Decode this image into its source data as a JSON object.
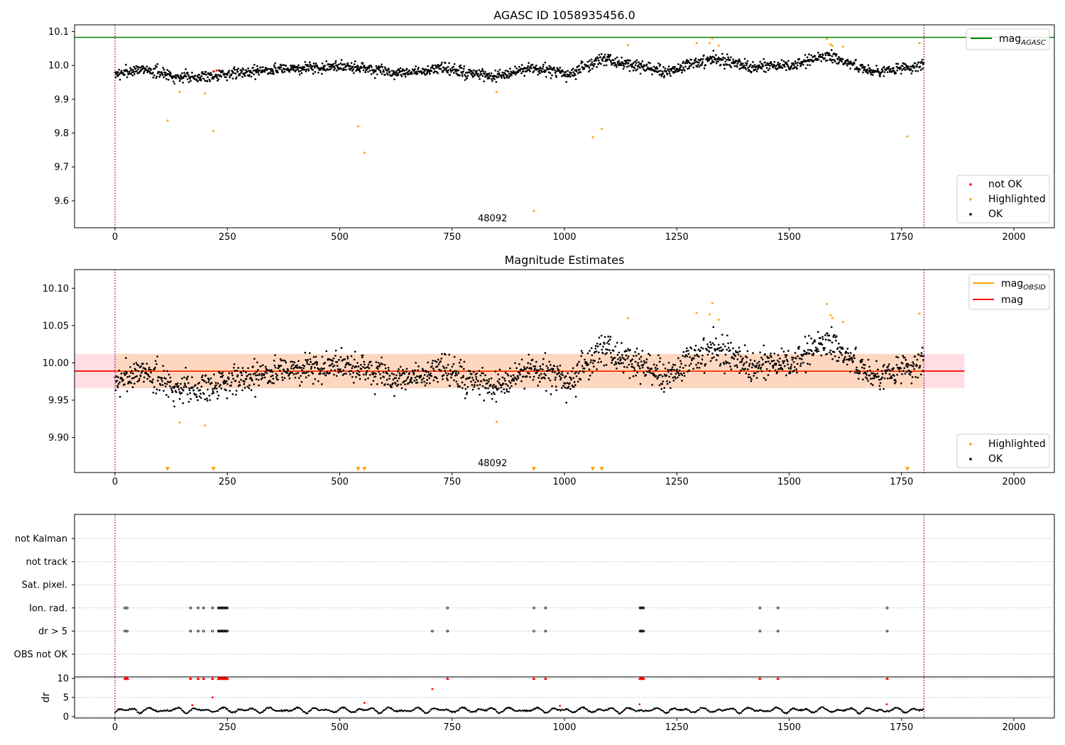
{
  "chart_data": [
    {
      "type": "scatter",
      "title": "AGASC ID 1058935456.0",
      "xlim": [
        -90,
        2090
      ],
      "ylim": [
        9.52,
        10.12
      ],
      "x_ticks": [
        0,
        250,
        500,
        750,
        1000,
        1250,
        1500,
        1750,
        2000
      ],
      "x_tick_labels": [
        "0",
        "250",
        "500",
        "750",
        "1000",
        "1250",
        "1500",
        "1750",
        "2000"
      ],
      "y_ticks": [
        9.6,
        9.7,
        9.8,
        9.9,
        10.0,
        10.1
      ],
      "y_tick_labels": [
        "9.6",
        "9.7",
        "9.8",
        "9.9",
        "10.0",
        "10.1"
      ],
      "obsid_label": "48092",
      "obsid_label_x": 900,
      "vlines": [
        0,
        1800
      ],
      "hline": {
        "name": "mag_AGASC",
        "y": 10.083,
        "color": "#008000"
      },
      "legend_lines": [
        {
          "label": "mag",
          "sub": "AGASC",
          "color": "#008000"
        }
      ],
      "legend_markers": [
        {
          "label": "not OK",
          "color": "#ff0000"
        },
        {
          "label": "Highlighted",
          "color": "#ffa500"
        },
        {
          "label": "OK",
          "color": "#000000"
        }
      ],
      "ok_series": {
        "name": "OK",
        "color": "#000000",
        "n": 1800,
        "noise": 0.015,
        "trend_x": [
          0,
          60,
          150,
          220,
          320,
          420,
          530,
          620,
          730,
          840,
          930,
          1010,
          1080,
          1150,
          1230,
          1330,
          1420,
          1500,
          1590,
          1680,
          1800
        ],
        "trend_y": [
          9.972,
          9.99,
          9.965,
          9.97,
          9.985,
          9.992,
          9.998,
          9.975,
          9.99,
          9.965,
          9.992,
          9.972,
          10.02,
          10.0,
          9.98,
          10.022,
          9.995,
          10.0,
          10.03,
          9.98,
          10.0
        ]
      },
      "highlighted": [
        [
          117,
          9.837
        ],
        [
          144,
          9.922
        ],
        [
          200,
          9.917
        ],
        [
          219,
          9.806
        ],
        [
          541,
          9.82
        ],
        [
          555,
          9.742
        ],
        [
          849,
          9.922
        ],
        [
          932,
          9.57
        ],
        [
          1063,
          9.788
        ],
        [
          1083,
          9.812
        ],
        [
          1141,
          10.06
        ],
        [
          1294,
          10.066
        ],
        [
          1323,
          10.066
        ],
        [
          1329,
          10.08
        ],
        [
          1343,
          10.058
        ],
        [
          1584,
          10.078
        ],
        [
          1592,
          10.062
        ],
        [
          1596,
          10.058
        ],
        [
          1620,
          10.056
        ],
        [
          1763,
          9.79
        ],
        [
          1790,
          10.066
        ]
      ],
      "not_ok": [
        [
          219,
          9.982
        ],
        [
          226,
          9.985
        ]
      ]
    },
    {
      "type": "scatter",
      "title": "Magnitude Estimates",
      "xlim": [
        -90,
        2090
      ],
      "ylim": [
        9.853,
        10.125
      ],
      "x_ticks": [
        0,
        250,
        500,
        750,
        1000,
        1250,
        1500,
        1750,
        2000
      ],
      "x_tick_labels": [
        "0",
        "250",
        "500",
        "750",
        "1000",
        "1250",
        "1500",
        "1750",
        "2000"
      ],
      "y_ticks": [
        9.9,
        9.95,
        10.0,
        10.05,
        10.1
      ],
      "y_tick_labels": [
        "9.90",
        "9.95",
        "10.00",
        "10.05",
        "10.10"
      ],
      "obsid_label": "48092",
      "obsid_label_x": 900,
      "vlines": [
        0,
        1800
      ],
      "mag_line": {
        "name": "mag",
        "y": 9.989,
        "color": "#ff0000"
      },
      "mag_band": {
        "x": [
          -90,
          1890
        ],
        "y": [
          9.966,
          10.012
        ],
        "color": "#ffdde3"
      },
      "obsid_band": {
        "x": [
          0,
          1800
        ],
        "y": [
          9.966,
          10.012
        ],
        "color": "#ffd7c0"
      },
      "legend_lines": [
        {
          "label": "mag",
          "sub": "OBSID",
          "color": "#ffa500"
        },
        {
          "label": "mag",
          "sub": "",
          "color": "#ff0000"
        }
      ],
      "legend_markers": [
        {
          "label": "Highlighted",
          "color": "#ffa500"
        },
        {
          "label": "OK",
          "color": "#000000"
        }
      ],
      "ok_series": {
        "name": "OK",
        "color": "#000000",
        "n": 1800,
        "noise": 0.018,
        "trend_x": [
          0,
          60,
          150,
          220,
          320,
          420,
          530,
          620,
          730,
          840,
          930,
          1010,
          1080,
          1150,
          1230,
          1330,
          1420,
          1500,
          1590,
          1680,
          1800
        ],
        "trend_y": [
          9.972,
          9.99,
          9.965,
          9.97,
          9.985,
          9.992,
          9.998,
          9.975,
          9.99,
          9.965,
          9.992,
          9.972,
          10.02,
          10.0,
          9.98,
          10.022,
          9.995,
          10.0,
          10.03,
          9.98,
          10.0
        ]
      },
      "highlighted": [
        [
          144,
          9.92
        ],
        [
          200,
          9.916
        ],
        [
          849,
          9.921
        ],
        [
          1141,
          10.06
        ],
        [
          1294,
          10.067
        ],
        [
          1323,
          10.065
        ],
        [
          1329,
          10.08
        ],
        [
          1343,
          10.058
        ],
        [
          1584,
          10.079
        ],
        [
          1592,
          10.064
        ],
        [
          1596,
          10.06
        ],
        [
          1620,
          10.055
        ],
        [
          1790,
          10.066
        ]
      ],
      "below_range_markers_x": [
        117,
        219,
        541,
        555,
        932,
        1063,
        1083,
        1763
      ]
    },
    {
      "type": "scatter",
      "title": "",
      "xlim": [
        -90,
        2090
      ],
      "flag_rows": [
        "not Kalman",
        "not track",
        "Sat. pixel.",
        "Ion. rad.",
        "dr > 5",
        "OBS not OK"
      ],
      "flags": {
        "Ion. rad.": [
          22,
          27,
          168,
          185,
          197,
          217,
          230,
          232,
          234,
          236,
          238,
          240,
          242,
          244,
          246,
          248,
          250,
          740,
          932,
          958,
          1168,
          1170,
          1172,
          1174,
          1176,
          1435,
          1475,
          1718
        ],
        "dr > 5": [
          22,
          27,
          168,
          185,
          197,
          217,
          230,
          232,
          234,
          236,
          238,
          240,
          242,
          244,
          246,
          248,
          250,
          706,
          740,
          932,
          958,
          1168,
          1170,
          1172,
          1174,
          1176,
          1435,
          1475,
          1718
        ]
      },
      "dr_panel": {
        "ylabel": "dr",
        "ylim": [
          -0.4,
          10.4
        ],
        "y_ticks": [
          0,
          5,
          10
        ],
        "y_tick_labels": [
          "0",
          "5",
          "10"
        ],
        "clip_value": 10,
        "ok_color": "#000000",
        "flag_color": "#ff0000",
        "high_x": [
          22,
          24,
          26,
          28,
          168,
          185,
          197,
          217,
          230,
          232,
          234,
          236,
          238,
          240,
          242,
          244,
          246,
          248,
          250,
          740,
          932,
          958,
          1168,
          1170,
          1172,
          1174,
          1176,
          1435,
          1475,
          1718
        ],
        "mid_red": [
          [
            172,
            3.0
          ],
          [
            217,
            5.0
          ],
          [
            555,
            3.6
          ],
          [
            706,
            7.2
          ],
          [
            990,
            2.8
          ],
          [
            1167,
            3.2
          ],
          [
            1717,
            3.2
          ]
        ]
      },
      "x_ticks": [
        0,
        250,
        500,
        750,
        1000,
        1250,
        1500,
        1750,
        2000
      ],
      "x_tick_labels": [
        "0",
        "250",
        "500",
        "750",
        "1000",
        "1250",
        "1500",
        "1750",
        "2000"
      ],
      "vlines": [
        0,
        1800
      ]
    }
  ]
}
